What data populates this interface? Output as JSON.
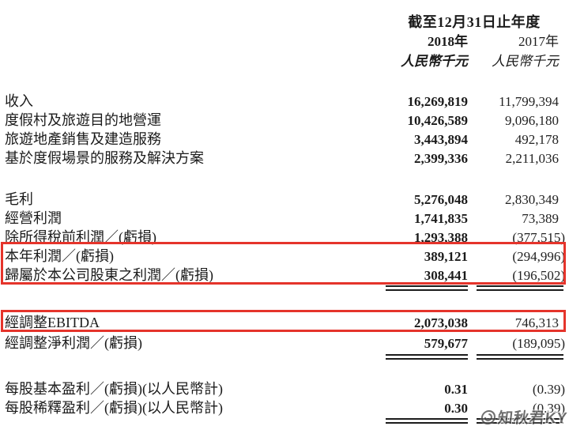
{
  "header": {
    "period_title": "截至12月31日止年度",
    "columns": [
      {
        "year": "2018年",
        "unit": "人民幣千元"
      },
      {
        "year": "2017年",
        "unit": "人民幣千元"
      }
    ]
  },
  "sections": [
    {
      "rule_after": false,
      "rows": [
        {
          "label": "收入",
          "v2018": "16,269,819",
          "v2017": "11,799,394",
          "highlight": false
        },
        {
          "label": "度假村及旅遊目的地營運",
          "v2018": "10,426,589",
          "v2017": "9,096,180",
          "highlight": false
        },
        {
          "label": "旅遊地產銷售及建造服務",
          "v2018": "3,443,894",
          "v2017": "492,178",
          "highlight": false
        },
        {
          "label": "基於度假場景的服務及解決方案",
          "v2018": "2,399,336",
          "v2017": "2,211,036",
          "highlight": false
        }
      ]
    },
    {
      "rule_after": true,
      "rows": [
        {
          "label": "毛利",
          "v2018": "5,276,048",
          "v2017": "2,830,349",
          "highlight": false
        },
        {
          "label": "經營利潤",
          "v2018": "1,741,835",
          "v2017": "73,389",
          "highlight": false
        },
        {
          "label": "除所得稅前利潤／(虧損)",
          "v2018": "1,293,388",
          "v2017": "(377,515)",
          "highlight": false
        },
        {
          "label": "本年利潤／(虧損)",
          "v2018": "389,121",
          "v2017": "(294,996)",
          "highlight": true
        },
        {
          "label": "歸屬於本公司股東之利潤／(虧損)",
          "v2018": "308,441",
          "v2017": "(196,502)",
          "highlight": true
        }
      ]
    },
    {
      "rule_after": true,
      "rows": [
        {
          "label": "經調整EBITDA",
          "v2018": "2,073,038",
          "v2017": "746,313",
          "highlight": true
        },
        {
          "label": "經調整淨利潤／(虧損)",
          "v2018": "579,677",
          "v2017": "(189,095)",
          "highlight": false
        }
      ]
    },
    {
      "rule_after": true,
      "rows": [
        {
          "label": "每股基本盈利／(虧損)(以人民幣計)",
          "v2018": "0.31",
          "v2017": "(0.39)",
          "highlight": false
        },
        {
          "label": "每股稀釋盈利／(虧損)(以人民幣計)",
          "v2018": "0.30",
          "v2017": "(0.39)",
          "highlight": false
        }
      ]
    }
  ],
  "annotations": {
    "highlight_color": "#e5342b",
    "highlighted_rows": [
      "本年利潤／(虧損)",
      "歸屬於本公司股東之利潤／(虧損)",
      "經調整EBITDA"
    ]
  },
  "watermark": {
    "text": "知秋君KY"
  }
}
